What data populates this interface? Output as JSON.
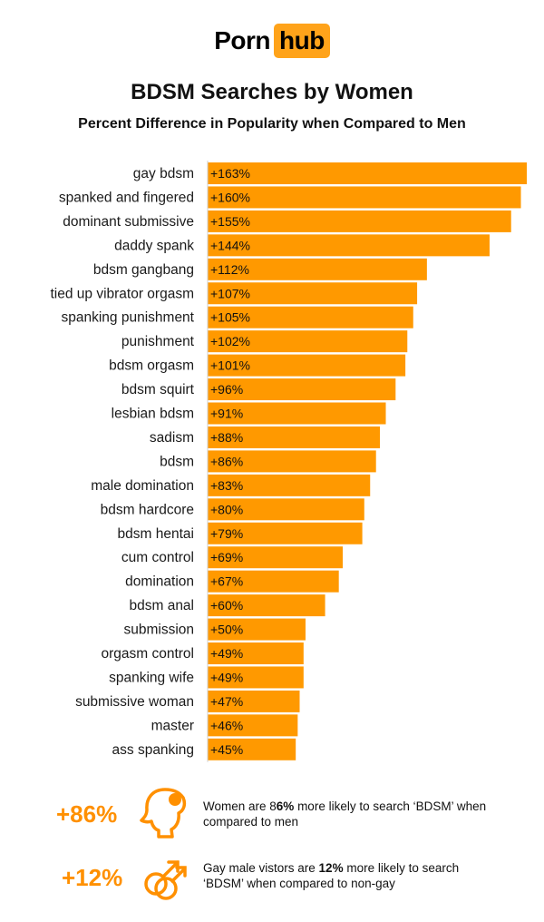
{
  "logo": {
    "left": "Porn",
    "right": "hub"
  },
  "title": "BDSM Searches by Women",
  "subtitle": "Percent Difference in Popularity when Compared to Men",
  "colors": {
    "bar": "#ff9900",
    "accent": "#ff9000",
    "logo_box": "#ffa31a"
  },
  "chart_data": {
    "type": "bar",
    "orientation": "horizontal",
    "title": "BDSM Searches by Women",
    "subtitle": "Percent Difference in Popularity when Compared to Men",
    "categories": [
      "gay bdsm",
      "spanked and fingered",
      "dominant submissive",
      "daddy spank",
      "bdsm gangbang",
      "tied up vibrator orgasm",
      "spanking punishment",
      "punishment",
      "bdsm orgasm",
      "bdsm squirt",
      "lesbian bdsm",
      "sadism",
      "bdsm",
      "male domination",
      "bdsm hardcore",
      "bdsm hentai",
      "cum control",
      "domination",
      "bdsm anal",
      "submission",
      "orgasm control",
      "spanking wife",
      "submissive woman",
      "master",
      "ass spanking"
    ],
    "values": [
      163,
      160,
      155,
      144,
      112,
      107,
      105,
      102,
      101,
      96,
      91,
      88,
      86,
      83,
      80,
      79,
      69,
      67,
      60,
      50,
      49,
      49,
      47,
      46,
      45
    ],
    "value_labels": [
      "+163%",
      "+160%",
      "+155%",
      "+144%",
      "+112%",
      "+107%",
      "+105%",
      "+102%",
      "+101%",
      "+96%",
      "+91%",
      "+88%",
      "+86%",
      "+83%",
      "+80%",
      "+79%",
      "+69%",
      "+67%",
      "+60%",
      "+50%",
      "+49%",
      "+49%",
      "+47%",
      "+46%",
      "+45%"
    ],
    "xlim": [
      0,
      163
    ],
    "grid": false,
    "legend": "none"
  },
  "stats": [
    {
      "number": "+86%",
      "icon": "woman-profile-icon",
      "text_before": "Women are 8",
      "text_bold": "6%",
      "text_after": " more likely to search ‘BDSM’ when compared to men"
    },
    {
      "number": "+12%",
      "icon": "male-male-symbol-icon",
      "text_before": "Gay male vistors are ",
      "text_bold": "12%",
      "text_after": " more likely to search ‘BDSM’ when compared to non-gay"
    }
  ]
}
